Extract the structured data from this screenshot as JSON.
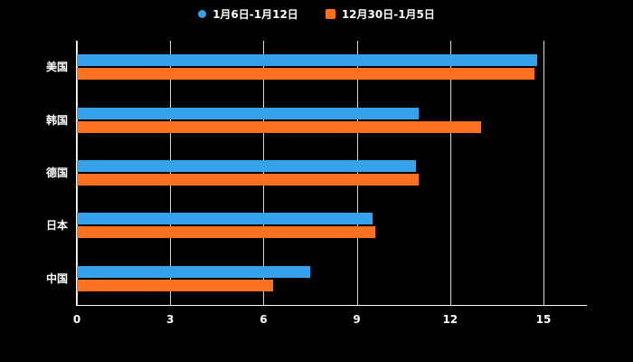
{
  "chart_data": {
    "type": "bar",
    "orientation": "horizontal",
    "title": "",
    "xlabel": "",
    "ylabel": "",
    "categories": [
      "美国",
      "韩国",
      "德国",
      "日本",
      "中国"
    ],
    "series": [
      {
        "name": "1月6日-1月12日",
        "color": "#36A2EB",
        "values": [
          14.8,
          11.0,
          10.9,
          9.5,
          7.5
        ]
      },
      {
        "name": "12月30日-1月5日",
        "color": "#FF7021",
        "values": [
          14.7,
          13.0,
          11.0,
          9.6,
          6.3
        ]
      }
    ],
    "xlim": [
      0,
      15
    ],
    "xticks": [
      0,
      3,
      6,
      9,
      12,
      15
    ],
    "grid": true,
    "legend_position": "top",
    "background": "#000000",
    "text_color": "#ffffff"
  }
}
